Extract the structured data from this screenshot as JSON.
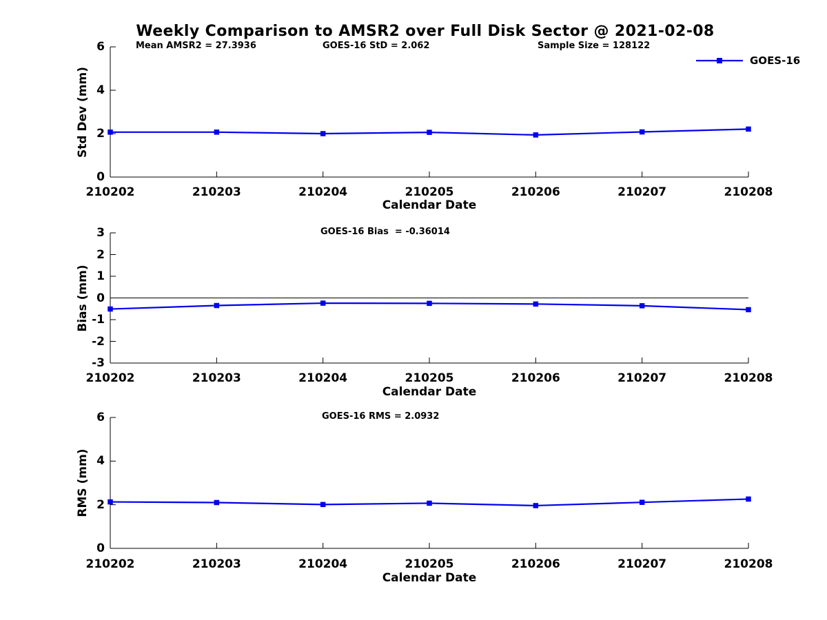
{
  "title": "Weekly Comparison to AMSR2 over Full Disk Sector @ 2021-02-08",
  "legend": {
    "label": "GOES-16",
    "position": "top-right-outside"
  },
  "colors": {
    "line": "#0000EE",
    "axis": "#000000",
    "text": "#000000"
  },
  "chart_data": [
    {
      "type": "line",
      "name": "std-dev",
      "annotations": [
        "Mean AMSR2 = 27.3936",
        "GOES-16 StD = 2.062",
        "Sample Size = 128122"
      ],
      "categories": [
        "210202",
        "210203",
        "210204",
        "210205",
        "210206",
        "210207",
        "210208"
      ],
      "series": [
        {
          "name": "GOES-16",
          "values": [
            2.07,
            2.07,
            2.0,
            2.06,
            1.94,
            2.08,
            2.21
          ]
        }
      ],
      "xlabel": "Calendar Date",
      "ylabel": "Std Dev (mm)",
      "ylim": [
        0,
        6
      ],
      "yticks": [
        0,
        2,
        4,
        6
      ],
      "zero_line": false,
      "grid": false,
      "marker": "square"
    },
    {
      "type": "line",
      "name": "bias",
      "annotations": [
        "GOES-16 Bias  = -0.36014"
      ],
      "categories": [
        "210202",
        "210203",
        "210204",
        "210205",
        "210206",
        "210207",
        "210208"
      ],
      "series": [
        {
          "name": "GOES-16",
          "values": [
            -0.51,
            -0.35,
            -0.24,
            -0.25,
            -0.28,
            -0.36,
            -0.54
          ]
        }
      ],
      "xlabel": "Calendar Date",
      "ylabel": "Bias (mm)",
      "ylim": [
        -3,
        3
      ],
      "yticks": [
        -3,
        -2,
        -1,
        0,
        1,
        2,
        3
      ],
      "zero_line": true,
      "grid": false,
      "marker": "square"
    },
    {
      "type": "line",
      "name": "rms",
      "annotations": [
        "GOES-16 RMS = 2.0932"
      ],
      "categories": [
        "210202",
        "210203",
        "210204",
        "210205",
        "210206",
        "210207",
        "210208"
      ],
      "series": [
        {
          "name": "GOES-16",
          "values": [
            2.13,
            2.1,
            2.01,
            2.07,
            1.96,
            2.11,
            2.26
          ]
        }
      ],
      "xlabel": "Calendar Date",
      "ylabel": "RMS (mm)",
      "ylim": [
        0,
        6
      ],
      "yticks": [
        0,
        2,
        4,
        6
      ],
      "zero_line": false,
      "grid": false,
      "marker": "square"
    }
  ]
}
